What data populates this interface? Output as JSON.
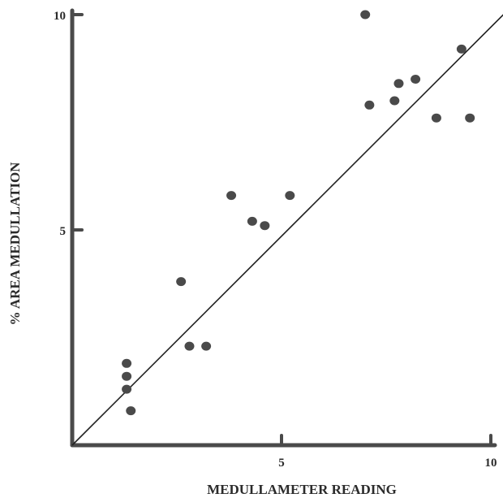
{
  "chart_data": {
    "type": "scatter",
    "title": "",
    "xlabel": "MEDULLAMETER READING",
    "ylabel": "% AREA MEDULLATION",
    "xlim": [
      0,
      10
    ],
    "ylim": [
      0,
      10
    ],
    "x_ticks": [
      "5",
      "10"
    ],
    "y_ticks": [
      "5",
      "10"
    ],
    "grid": false,
    "points": [
      {
        "x": 1.3,
        "y": 1.9
      },
      {
        "x": 1.3,
        "y": 1.6
      },
      {
        "x": 1.3,
        "y": 1.3
      },
      {
        "x": 1.4,
        "y": 0.8
      },
      {
        "x": 2.6,
        "y": 3.8
      },
      {
        "x": 2.8,
        "y": 2.3
      },
      {
        "x": 3.2,
        "y": 2.3
      },
      {
        "x": 3.8,
        "y": 5.8
      },
      {
        "x": 4.3,
        "y": 5.2
      },
      {
        "x": 4.6,
        "y": 5.1
      },
      {
        "x": 5.2,
        "y": 5.8
      },
      {
        "x": 7.0,
        "y": 10.0
      },
      {
        "x": 7.1,
        "y": 7.9
      },
      {
        "x": 7.7,
        "y": 8.0
      },
      {
        "x": 7.8,
        "y": 8.4
      },
      {
        "x": 8.2,
        "y": 8.5
      },
      {
        "x": 8.7,
        "y": 7.6
      },
      {
        "x": 9.3,
        "y": 9.2
      },
      {
        "x": 9.5,
        "y": 7.6
      }
    ],
    "fit_line": {
      "x": [
        0,
        10.3
      ],
      "y": [
        0,
        10.0
      ]
    },
    "colors": {
      "axis": "#4a4a4a",
      "points": "#4a4a4a",
      "line": "#222222"
    }
  }
}
